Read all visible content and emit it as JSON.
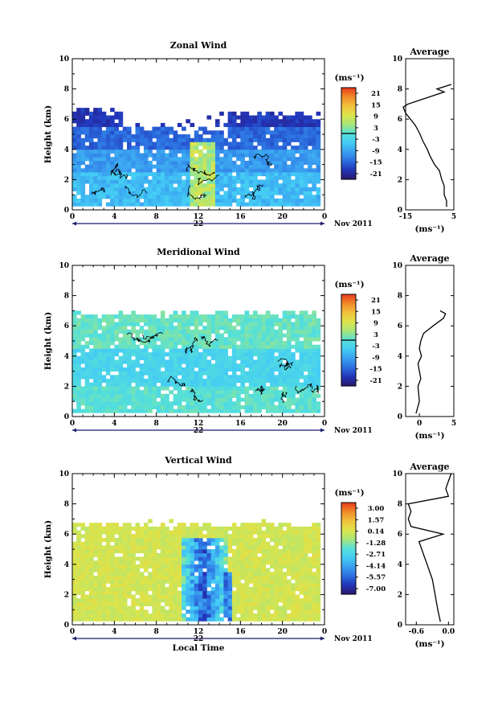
{
  "colors": {
    "scale": [
      "#2b1a6b",
      "#2233b8",
      "#2b6fe0",
      "#3aa0f0",
      "#44ccf5",
      "#56e0d8",
      "#a8e67a",
      "#dde44a",
      "#f2c23c",
      "#f08a2a",
      "#e83a1a"
    ],
    "axis": "#000000",
    "contour": "#000000",
    "date_line": "#1a1a6e"
  },
  "x_axis": {
    "label": "Local Time",
    "ticks": [
      "0",
      "4",
      "8",
      "12",
      "16",
      "20",
      "0"
    ],
    "tick_values": [
      0,
      4,
      8,
      12,
      16,
      20,
      24
    ],
    "date_label": "Nov 2011",
    "panel_day_labels": [
      "22",
      "22",
      "22"
    ]
  },
  "panels": [
    {
      "id": "zonal",
      "title": "Zonal Wind",
      "ylabel": "Height (km)",
      "yticks": [
        "0",
        "2",
        "4",
        "6",
        "8",
        "10"
      ],
      "units": "(ms⁻¹)",
      "colorbar_ticks": [
        "21",
        "15",
        "9",
        "3",
        "-3",
        "-9",
        "-15",
        "-21"
      ],
      "profile": {
        "title": "Average",
        "xticks": [
          "-15",
          "5"
        ],
        "xrange": [
          -15,
          5
        ],
        "xlabel": "(ms⁻¹)"
      }
    },
    {
      "id": "meridional",
      "title": "Meridional Wind",
      "ylabel": "Height (km)",
      "yticks": [
        "0",
        "2",
        "4",
        "6",
        "8",
        "10"
      ],
      "units": "(ms⁻¹)",
      "colorbar_ticks": [
        "21",
        "15",
        "9",
        "3",
        "-3",
        "-9",
        "-15",
        "-21"
      ],
      "profile": {
        "title": "Average",
        "xticks": [
          "0",
          "5"
        ],
        "xrange": [
          -2,
          5
        ],
        "xlabel": "(ms⁻¹)"
      }
    },
    {
      "id": "vertical",
      "title": "Vertical Wind",
      "ylabel": "Height (km)",
      "yticks": [
        "0",
        "2",
        "4",
        "6",
        "8",
        "10"
      ],
      "units": "(ms⁻¹)",
      "colorbar_ticks": [
        "3.00",
        "1.57",
        "0.14",
        "-1.28",
        "-2.71",
        "-4.14",
        "-5.57",
        "-7.00"
      ],
      "profile": {
        "title": "Average",
        "xticks": [
          "-0.6",
          "0.0"
        ],
        "xrange": [
          -0.8,
          0.1
        ],
        "xlabel": "(ms⁻¹)"
      }
    }
  ],
  "chart_data": [
    {
      "type": "heatmap",
      "title": "Zonal Wind",
      "xlabel": "",
      "ylabel": "Height (km)",
      "xlim": [
        0,
        24
      ],
      "ylim": [
        0,
        10
      ],
      "clim": [
        -24,
        24
      ],
      "colorbar_ticks": [
        21,
        15,
        9,
        3,
        -3,
        -9,
        -15,
        -21
      ],
      "description_of_field": "mostly negative (easterly) winds, -3 to -15 m/s in 0-4 km, about -15 to -21 m/s near 4-6.5 km",
      "layers": [
        {
          "height_range_km": [
            0.3,
            2.5
          ],
          "approx_value": -6
        },
        {
          "height_range_km": [
            2.5,
            4.0
          ],
          "approx_value": -9
        },
        {
          "height_range_km": [
            4.0,
            5.5
          ],
          "approx_value": -15
        },
        {
          "height_range_km": [
            5.5,
            6.5
          ],
          "approx_value": -18
        }
      ],
      "average_profile": {
        "height_km": [
          0.2,
          0.6,
          1.0,
          1.6,
          2.0,
          2.6,
          3.0,
          3.6,
          4.0,
          4.6,
          5.0,
          5.6,
          6.0,
          6.4,
          6.8,
          7.0,
          7.8,
          8.0,
          8.3
        ],
        "value": [
          2,
          2,
          1,
          1,
          0,
          -1,
          -3,
          -5,
          -6,
          -8,
          -9,
          -11,
          -13,
          -15,
          -16,
          -14,
          1,
          -2,
          4
        ]
      }
    },
    {
      "type": "heatmap",
      "title": "Meridional Wind",
      "xlabel": "",
      "ylabel": "Height (km)",
      "xlim": [
        0,
        24
      ],
      "ylim": [
        0,
        10
      ],
      "clim": [
        -24,
        24
      ],
      "colorbar_ticks": [
        21,
        15,
        9,
        3,
        -3,
        -9,
        -15,
        -21
      ],
      "layers": [
        {
          "height_range_km": [
            0.3,
            2.0
          ],
          "approx_value": -1
        },
        {
          "height_range_km": [
            2.0,
            4.5
          ],
          "approx_value": -3
        },
        {
          "height_range_km": [
            4.5,
            6.8
          ],
          "approx_value": 1
        }
      ],
      "average_profile": {
        "height_km": [
          0.2,
          1.0,
          2.0,
          2.5,
          3.0,
          3.5,
          4.0,
          4.5,
          5.0,
          5.5,
          6.0,
          6.5,
          6.8,
          7.0
        ],
        "value": [
          -0.5,
          0.0,
          -0.2,
          0.2,
          0.0,
          -0.2,
          0.3,
          0.0,
          0.2,
          0.6,
          2.0,
          3.5,
          3.8,
          3.0
        ]
      }
    },
    {
      "type": "heatmap",
      "title": "Vertical Wind",
      "xlabel": "Local Time",
      "ylabel": "Height (km)",
      "xlim": [
        0,
        24
      ],
      "ylim": [
        0,
        10
      ],
      "clim": [
        -7.7,
        3.7
      ],
      "colorbar_ticks": [
        3.0,
        1.57,
        0.14,
        -1.28,
        -2.71,
        -4.14,
        -5.57,
        -7.0
      ],
      "description_of_field": "mostly near-zero vertical velocity; strong downward motion (-4 to -7 m/s) between about 10.5 and 15 LT",
      "average_profile": {
        "height_km": [
          0.2,
          1.0,
          2.0,
          3.0,
          4.0,
          4.5,
          5.0,
          5.5,
          6.0,
          6.5,
          7.0,
          7.5,
          8.0,
          8.5,
          9.0,
          9.5,
          10.0
        ],
        "value": [
          -0.15,
          -0.2,
          -0.25,
          -0.3,
          -0.4,
          -0.45,
          -0.5,
          -0.55,
          -0.1,
          -0.7,
          -0.75,
          -0.7,
          -0.75,
          0.0,
          -0.05,
          0.0,
          0.05
        ]
      }
    }
  ]
}
